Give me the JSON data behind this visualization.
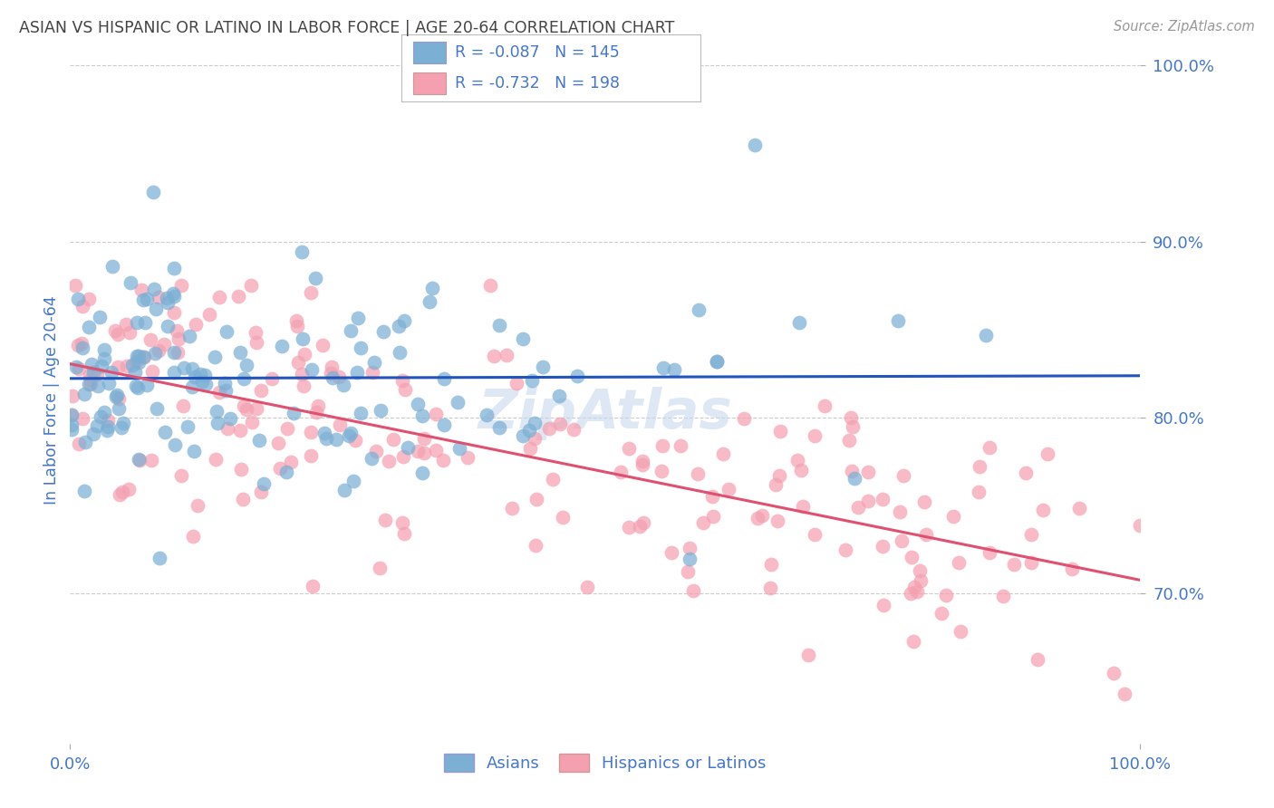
{
  "title": "ASIAN VS HISPANIC OR LATINO IN LABOR FORCE | AGE 20-64 CORRELATION CHART",
  "source": "Source: ZipAtlas.com",
  "ylabel": "In Labor Force | Age 20-64",
  "xlim": [
    0.0,
    1.0
  ],
  "ylim": [
    0.615,
    1.005
  ],
  "yticks": [
    0.7,
    0.8,
    0.9,
    1.0
  ],
  "ytick_labels": [
    "70.0%",
    "80.0%",
    "90.0%",
    "100.0%"
  ],
  "xtick_labels": [
    "0.0%",
    "100.0%"
  ],
  "xticks": [
    0.0,
    1.0
  ],
  "watermark": "ZipAtlas",
  "legend_labels": [
    "Asians",
    "Hispanics or Latinos"
  ],
  "R_asian": -0.087,
  "N_asian": 145,
  "R_hispanic": -0.732,
  "N_hispanic": 198,
  "asian_color": "#7bafd4",
  "hispanic_color": "#f4a0b0",
  "asian_line_color": "#2255bb",
  "hispanic_line_color": "#e05070",
  "title_color": "#444444",
  "tick_label_color": "#4477cc",
  "background_color": "#ffffff",
  "grid_color": "#cccccc"
}
